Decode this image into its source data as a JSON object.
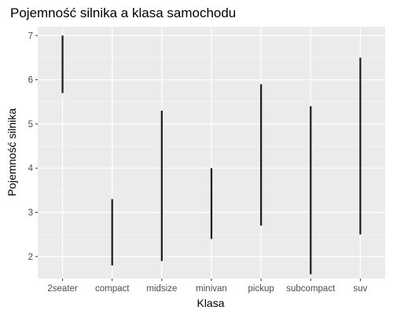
{
  "chart_data": {
    "type": "range",
    "title": "Pojemność silnika a klasa samochodu",
    "xlabel": "Klasa",
    "ylabel": "Pojemność silnika",
    "categories": [
      "2seater",
      "compact",
      "midsize",
      "minivan",
      "pickup",
      "subcompact",
      "suv"
    ],
    "series": [
      {
        "low": [
          5.7,
          1.8,
          1.9,
          2.4,
          2.7,
          1.6,
          2.5
        ],
        "high": [
          7.0,
          3.3,
          5.3,
          4.0,
          5.9,
          5.4,
          6.5
        ]
      }
    ],
    "ylim": [
      1.5,
      7.2
    ],
    "yticks": [
      2,
      3,
      4,
      5,
      6,
      7
    ],
    "grid": true,
    "legend": "none",
    "colors": {
      "panel_background": "#ebebeb",
      "grid_major": "#ffffff",
      "segment": "#1a1a1a"
    }
  }
}
